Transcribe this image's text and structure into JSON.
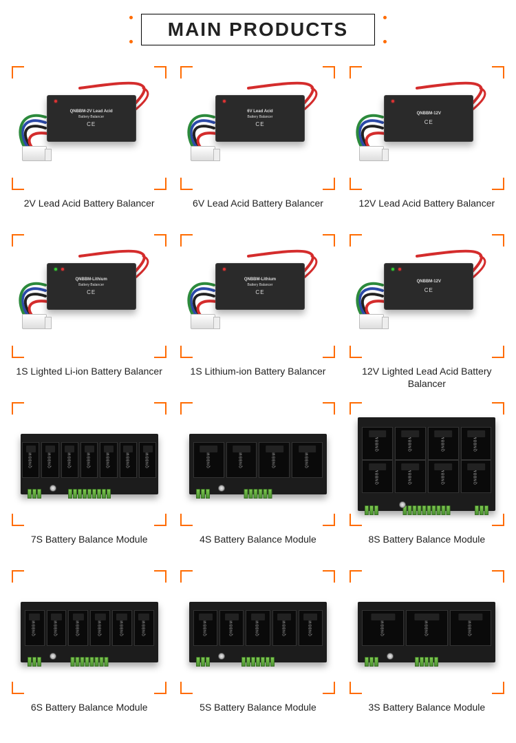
{
  "header": {
    "title": "MAIN PRODUCTS"
  },
  "colors": {
    "accent": "#ff6b00",
    "wire_red": "#d42c2c",
    "wire_blue": "#2c4aa8",
    "wire_green": "#2c8a3c",
    "wire_black": "#222222",
    "pcb_bg": "#1c1c1c",
    "terminal_green": "#7ec850"
  },
  "products": [
    {
      "label": "2V Lead Acid Battery Balancer",
      "kind": "wired",
      "model_top": "QNBBM-2V Lead Acid",
      "model_sub": "Battery Balancer",
      "lighted": false
    },
    {
      "label": "6V Lead Acid Battery Balancer",
      "kind": "wired",
      "model_top": "6V Lead Acid",
      "model_sub": "Battery Balancer",
      "lighted": false
    },
    {
      "label": "12V Lead Acid Battery Balancer",
      "kind": "wired",
      "model_top": "QNBBM-12V",
      "model_sub": "",
      "lighted": false
    },
    {
      "label": "1S Lighted Li-ion Battery Balancer",
      "kind": "wired",
      "model_top": "QNBBM-Lithium",
      "model_sub": "Battery Balancer",
      "lighted": true
    },
    {
      "label": "1S Lithium-ion Battery Balancer",
      "kind": "wired",
      "model_top": "QNBBM-Lithium",
      "model_sub": "Battery Balancer",
      "lighted": false
    },
    {
      "label": "12V Lighted  Lead Acid Battery Balancer",
      "kind": "wired",
      "model_top": "QNBBM-12V",
      "model_sub": "",
      "lighted": true
    },
    {
      "label": "7S Battery Balance Module",
      "kind": "module",
      "slots": 7,
      "rows": 1
    },
    {
      "label": "4S Battery Balance Module",
      "kind": "module",
      "slots": 4,
      "rows": 1
    },
    {
      "label": "8S Battery Balance Module",
      "kind": "module",
      "slots": 8,
      "rows": 2
    },
    {
      "label": "6S Battery Balance Module",
      "kind": "module",
      "slots": 6,
      "rows": 1
    },
    {
      "label": "5S Battery Balance Module",
      "kind": "module",
      "slots": 5,
      "rows": 1
    },
    {
      "label": "3S Battery Balance Module",
      "kind": "module",
      "slots": 3,
      "rows": 1
    }
  ],
  "slot_brand": "QNBBM",
  "ce_mark": "CE"
}
